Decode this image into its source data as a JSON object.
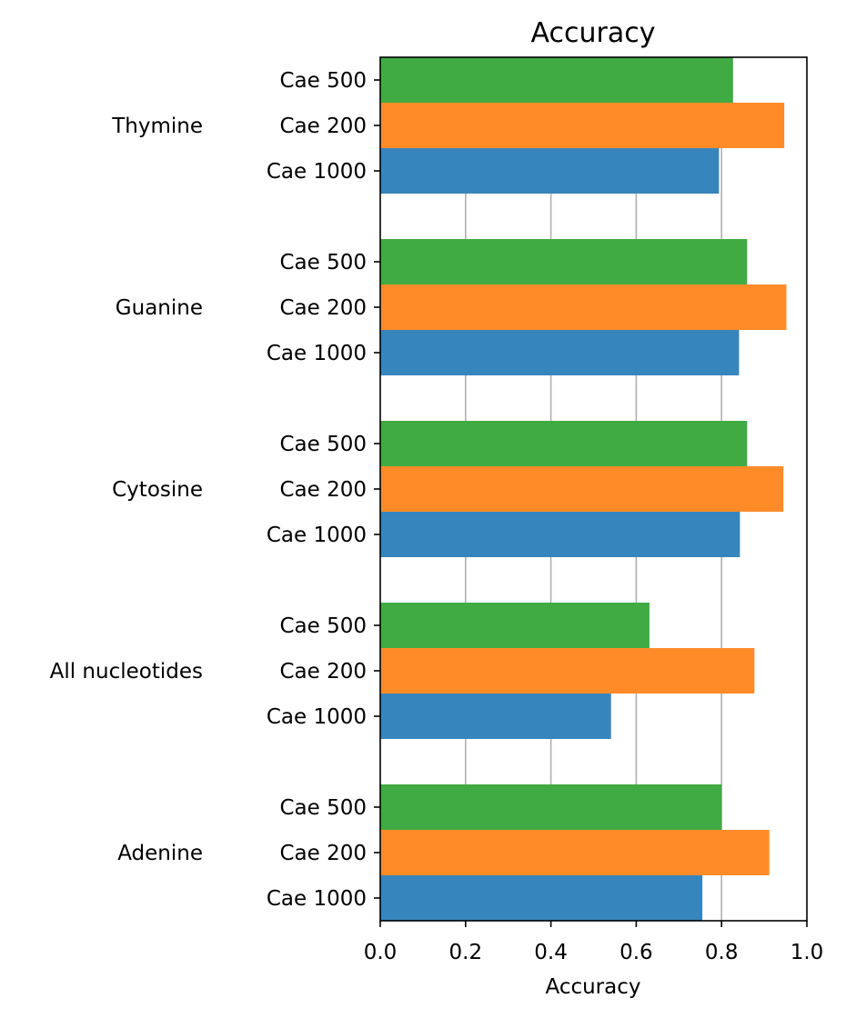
{
  "chart_data": {
    "type": "bar",
    "orientation": "horizontal",
    "title": "Accuracy",
    "xlabel": "Accuracy",
    "ylabel": "",
    "xlim": [
      0,
      1
    ],
    "xticks": [
      "0.0",
      "0.2",
      "0.4",
      "0.6",
      "0.8",
      "1.0"
    ],
    "grid": "vertical",
    "legend": "none",
    "categories": [
      "Thymine",
      "Guanine",
      "Cytosine",
      "All nucleotides",
      "Adenine"
    ],
    "series": [
      {
        "name": "Cae 500",
        "color": "#41ab43",
        "values": [
          0.827,
          0.86,
          0.86,
          0.631,
          0.8
        ]
      },
      {
        "name": "Cae 200",
        "color": "#ff8b28",
        "values": [
          0.947,
          0.952,
          0.945,
          0.877,
          0.912
        ]
      },
      {
        "name": "Cae 1000",
        "color": "#3785bd",
        "values": [
          0.794,
          0.841,
          0.843,
          0.541,
          0.755
        ]
      }
    ]
  }
}
